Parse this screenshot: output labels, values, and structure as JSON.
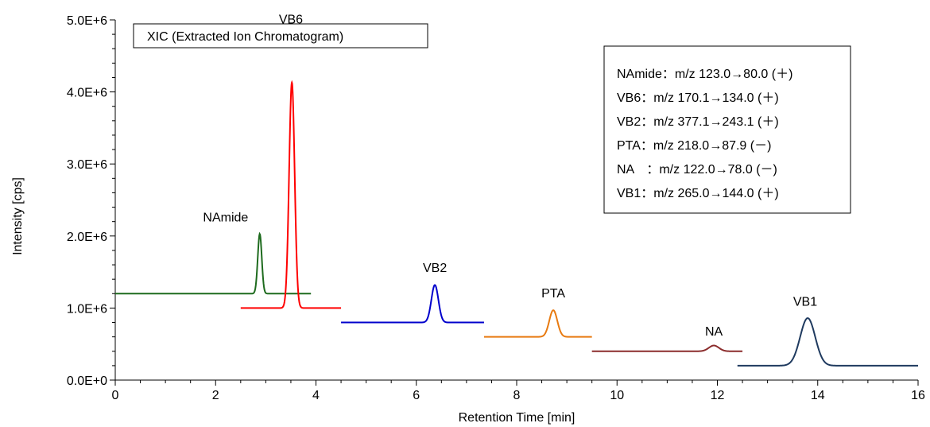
{
  "chart_data": {
    "type": "line",
    "title": "XIC (Extracted Ion Chromatogram)",
    "xlabel": "Retention Time [min]",
    "ylabel": "Intensity [cps]",
    "xlim": [
      0,
      16
    ],
    "ylim": [
      0,
      5000000
    ],
    "x_ticks": [
      "0",
      "2",
      "4",
      "6",
      "8",
      "10",
      "12",
      "14",
      "16"
    ],
    "y_ticks": [
      "0.0E+0",
      "1.0E+6",
      "2.0E+6",
      "3.0E+6",
      "4.0E+6",
      "5.0E+6"
    ],
    "grid": false,
    "legend_position": "top-right",
    "legend": [
      "NAmide：m/z 123.0→80.0 (＋)",
      "VB6：m/z 170.1→134.0 (＋)",
      "VB2：m/z 377.1→243.1 (＋)",
      "PTA：m/z 218.0→87.9 (－)",
      "NA　：m/z 122.0→78.0 (－)",
      "VB1：m/z 265.0→144.0 (＋)"
    ],
    "series": [
      {
        "name": "NAmide",
        "color": "#1e6b1e",
        "x_start": 0.0,
        "x_end": 3.9,
        "baseline": 1200000,
        "peak_rt": 2.88,
        "peak_intensity": 2030000,
        "width": 0.04,
        "label_x": 2.2,
        "label_y": 2200000
      },
      {
        "name": "VB6",
        "color": "#ff0000",
        "x_start": 2.5,
        "x_end": 4.5,
        "baseline": 1000000,
        "peak_rt": 3.52,
        "peak_intensity": 4130000,
        "width": 0.055,
        "label_x": 3.5,
        "label_y": 4950000
      },
      {
        "name": "VB2",
        "color": "#0000cc",
        "x_start": 4.5,
        "x_end": 7.35,
        "baseline": 800000,
        "peak_rt": 6.37,
        "peak_intensity": 1320000,
        "width": 0.07,
        "label_x": 6.37,
        "label_y": 1500000
      },
      {
        "name": "PTA",
        "color": "#e87a10",
        "x_start": 7.35,
        "x_end": 9.5,
        "baseline": 600000,
        "peak_rt": 8.73,
        "peak_intensity": 970000,
        "width": 0.08,
        "label_x": 8.73,
        "label_y": 1150000
      },
      {
        "name": "NA",
        "color": "#8b2c2c",
        "x_start": 9.5,
        "x_end": 12.5,
        "baseline": 400000,
        "peak_rt": 11.93,
        "peak_intensity": 480000,
        "width": 0.1,
        "label_x": 11.93,
        "label_y": 620000
      },
      {
        "name": "VB1",
        "color": "#1f3a5f",
        "x_start": 12.4,
        "x_end": 16.0,
        "baseline": 200000,
        "peak_rt": 13.8,
        "peak_intensity": 860000,
        "width": 0.15,
        "label_x": 13.75,
        "label_y": 1030000
      }
    ]
  }
}
